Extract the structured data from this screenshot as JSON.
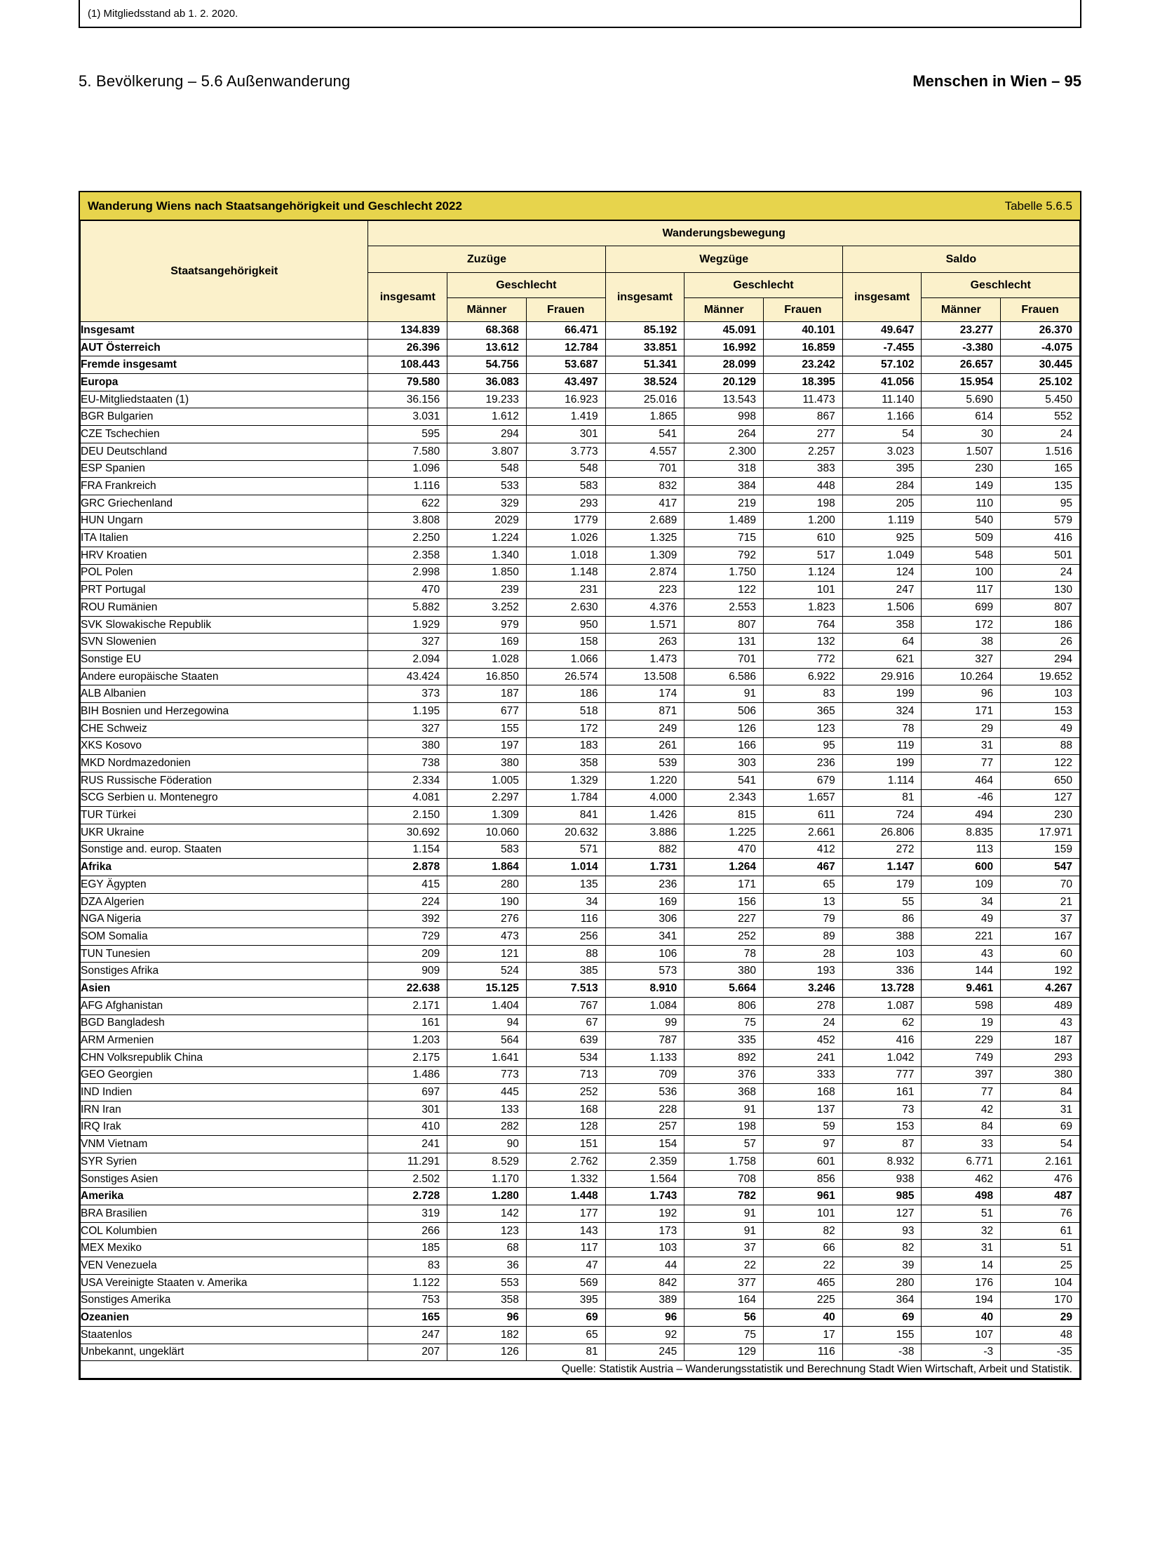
{
  "page": {
    "breadcrumb": "5. Bevölkerung – 5.6 Außenwanderung",
    "publication": "Menschen in Wien – 95"
  },
  "colors": {
    "title_bar_bg": "#E7D44C",
    "header_bg": "#FBF1CB",
    "border": "#000000",
    "page_bg": "#FFFFFF"
  },
  "table": {
    "title": "Wanderung Wiens nach Staatsangehörigkeit und Geschlecht 2022",
    "reference": "Tabelle 5.6.5",
    "header": {
      "row_dimension": "Staatsangehörigkeit",
      "col_dimension": "Wanderungsbewegung",
      "groups": [
        {
          "label": "Zuzüge"
        },
        {
          "label": "Wegzüge"
        },
        {
          "label": "Saldo"
        }
      ],
      "total_label": "insgesamt",
      "gender_label": "Geschlecht",
      "male_label": "Männer",
      "female_label": "Frauen"
    },
    "rows": [
      {
        "label": "Insgesamt",
        "indent": 0,
        "bold": true,
        "values": [
          "134.839",
          "68.368",
          "66.471",
          "85.192",
          "45.091",
          "40.101",
          "49.647",
          "23.277",
          "26.370"
        ]
      },
      {
        "label": "AUT Österreich",
        "indent": 1,
        "bold": true,
        "values": [
          "26.396",
          "13.612",
          "12.784",
          "33.851",
          "16.992",
          "16.859",
          "-7.455",
          "-3.380",
          "-4.075"
        ]
      },
      {
        "label": "Fremde insgesamt",
        "indent": 1,
        "bold": true,
        "values": [
          "108.443",
          "54.756",
          "53.687",
          "51.341",
          "28.099",
          "23.242",
          "57.102",
          "26.657",
          "30.445"
        ]
      },
      {
        "label": "Europa",
        "indent": 2,
        "bold": true,
        "values": [
          "79.580",
          "36.083",
          "43.497",
          "38.524",
          "20.129",
          "18.395",
          "41.056",
          "15.954",
          "25.102"
        ]
      },
      {
        "label": "EU-Mitgliedstaaten (1)",
        "indent": 3,
        "bold": false,
        "values": [
          "36.156",
          "19.233",
          "16.923",
          "25.016",
          "13.543",
          "11.473",
          "11.140",
          "5.690",
          "5.450"
        ]
      },
      {
        "label": "BGR Bulgarien",
        "indent": 4,
        "bold": false,
        "values": [
          "3.031",
          "1.612",
          "1.419",
          "1.865",
          "998",
          "867",
          "1.166",
          "614",
          "552"
        ]
      },
      {
        "label": "CZE Tschechien",
        "indent": 4,
        "bold": false,
        "values": [
          "595",
          "294",
          "301",
          "541",
          "264",
          "277",
          "54",
          "30",
          "24"
        ]
      },
      {
        "label": "DEU Deutschland",
        "indent": 4,
        "bold": false,
        "values": [
          "7.580",
          "3.807",
          "3.773",
          "4.557",
          "2.300",
          "2.257",
          "3.023",
          "1.507",
          "1.516"
        ]
      },
      {
        "label": "ESP Spanien",
        "indent": 4,
        "bold": false,
        "values": [
          "1.096",
          "548",
          "548",
          "701",
          "318",
          "383",
          "395",
          "230",
          "165"
        ]
      },
      {
        "label": "FRA Frankreich",
        "indent": 4,
        "bold": false,
        "values": [
          "1.116",
          "533",
          "583",
          "832",
          "384",
          "448",
          "284",
          "149",
          "135"
        ]
      },
      {
        "label": "GRC Griechenland",
        "indent": 4,
        "bold": false,
        "values": [
          "622",
          "329",
          "293",
          "417",
          "219",
          "198",
          "205",
          "110",
          "95"
        ]
      },
      {
        "label": "HUN Ungarn",
        "indent": 4,
        "bold": false,
        "values": [
          "3.808",
          "2029",
          "1779",
          "2.689",
          "1.489",
          "1.200",
          "1.119",
          "540",
          "579"
        ]
      },
      {
        "label": "ITA Italien",
        "indent": 4,
        "bold": false,
        "values": [
          "2.250",
          "1.224",
          "1.026",
          "1.325",
          "715",
          "610",
          "925",
          "509",
          "416"
        ]
      },
      {
        "label": "HRV Kroatien",
        "indent": 4,
        "bold": false,
        "values": [
          "2.358",
          "1.340",
          "1.018",
          "1.309",
          "792",
          "517",
          "1.049",
          "548",
          "501"
        ]
      },
      {
        "label": "POL Polen",
        "indent": 4,
        "bold": false,
        "values": [
          "2.998",
          "1.850",
          "1.148",
          "2.874",
          "1.750",
          "1.124",
          "124",
          "100",
          "24"
        ]
      },
      {
        "label": "PRT Portugal",
        "indent": 4,
        "bold": false,
        "values": [
          "470",
          "239",
          "231",
          "223",
          "122",
          "101",
          "247",
          "117",
          "130"
        ]
      },
      {
        "label": "ROU Rumänien",
        "indent": 4,
        "bold": false,
        "values": [
          "5.882",
          "3.252",
          "2.630",
          "4.376",
          "2.553",
          "1.823",
          "1.506",
          "699",
          "807"
        ]
      },
      {
        "label": "SVK Slowakische Republik",
        "indent": 4,
        "bold": false,
        "values": [
          "1.929",
          "979",
          "950",
          "1.571",
          "807",
          "764",
          "358",
          "172",
          "186"
        ]
      },
      {
        "label": "SVN Slowenien",
        "indent": 4,
        "bold": false,
        "values": [
          "327",
          "169",
          "158",
          "263",
          "131",
          "132",
          "64",
          "38",
          "26"
        ]
      },
      {
        "label": "Sonstige EU",
        "indent": 4,
        "bold": false,
        "values": [
          "2.094",
          "1.028",
          "1.066",
          "1.473",
          "701",
          "772",
          "621",
          "327",
          "294"
        ]
      },
      {
        "label": "Andere europäische Staaten",
        "indent": 3,
        "bold": false,
        "values": [
          "43.424",
          "16.850",
          "26.574",
          "13.508",
          "6.586",
          "6.922",
          "29.916",
          "10.264",
          "19.652"
        ]
      },
      {
        "label": "ALB Albanien",
        "indent": 4,
        "bold": false,
        "values": [
          "373",
          "187",
          "186",
          "174",
          "91",
          "83",
          "199",
          "96",
          "103"
        ]
      },
      {
        "label": "BIH Bosnien und Herzegowina",
        "indent": 4,
        "bold": false,
        "values": [
          "1.195",
          "677",
          "518",
          "871",
          "506",
          "365",
          "324",
          "171",
          "153"
        ]
      },
      {
        "label": "CHE Schweiz",
        "indent": 4,
        "bold": false,
        "values": [
          "327",
          "155",
          "172",
          "249",
          "126",
          "123",
          "78",
          "29",
          "49"
        ]
      },
      {
        "label": "XKS Kosovo",
        "indent": 4,
        "bold": false,
        "values": [
          "380",
          "197",
          "183",
          "261",
          "166",
          "95",
          "119",
          "31",
          "88"
        ]
      },
      {
        "label": "MKD Nordmazedonien",
        "indent": 4,
        "bold": false,
        "values": [
          "738",
          "380",
          "358",
          "539",
          "303",
          "236",
          "199",
          "77",
          "122"
        ]
      },
      {
        "label": "RUS Russische Föderation",
        "indent": 4,
        "bold": false,
        "values": [
          "2.334",
          "1.005",
          "1.329",
          "1.220",
          "541",
          "679",
          "1.114",
          "464",
          "650"
        ]
      },
      {
        "label": "SCG Serbien u. Montenegro",
        "indent": 4,
        "bold": false,
        "values": [
          "4.081",
          "2.297",
          "1.784",
          "4.000",
          "2.343",
          "1.657",
          "81",
          "-46",
          "127"
        ]
      },
      {
        "label": "TUR Türkei",
        "indent": 4,
        "bold": false,
        "values": [
          "2.150",
          "1.309",
          "841",
          "1.426",
          "815",
          "611",
          "724",
          "494",
          "230"
        ]
      },
      {
        "label": "UKR Ukraine",
        "indent": 4,
        "bold": false,
        "values": [
          "30.692",
          "10.060",
          "20.632",
          "3.886",
          "1.225",
          "2.661",
          "26.806",
          "8.835",
          "17.971"
        ]
      },
      {
        "label": "Sonstige and. europ. Staaten",
        "indent": 4,
        "bold": false,
        "values": [
          "1.154",
          "583",
          "571",
          "882",
          "470",
          "412",
          "272",
          "113",
          "159"
        ]
      },
      {
        "label": "Afrika",
        "indent": 2,
        "bold": true,
        "values": [
          "2.878",
          "1.864",
          "1.014",
          "1.731",
          "1.264",
          "467",
          "1.147",
          "600",
          "547"
        ]
      },
      {
        "label": "EGY Ägypten",
        "indent": 3,
        "bold": false,
        "values": [
          "415",
          "280",
          "135",
          "236",
          "171",
          "65",
          "179",
          "109",
          "70"
        ]
      },
      {
        "label": "DZA Algerien",
        "indent": 3,
        "bold": false,
        "values": [
          "224",
          "190",
          "34",
          "169",
          "156",
          "13",
          "55",
          "34",
          "21"
        ]
      },
      {
        "label": "NGA Nigeria",
        "indent": 3,
        "bold": false,
        "values": [
          "392",
          "276",
          "116",
          "306",
          "227",
          "79",
          "86",
          "49",
          "37"
        ]
      },
      {
        "label": "SOM Somalia",
        "indent": 3,
        "bold": false,
        "values": [
          "729",
          "473",
          "256",
          "341",
          "252",
          "89",
          "388",
          "221",
          "167"
        ]
      },
      {
        "label": "TUN Tunesien",
        "indent": 3,
        "bold": false,
        "values": [
          "209",
          "121",
          "88",
          "106",
          "78",
          "28",
          "103",
          "43",
          "60"
        ]
      },
      {
        "label": "Sonstiges Afrika",
        "indent": 3,
        "bold": false,
        "values": [
          "909",
          "524",
          "385",
          "573",
          "380",
          "193",
          "336",
          "144",
          "192"
        ]
      },
      {
        "label": "Asien",
        "indent": 2,
        "bold": true,
        "values": [
          "22.638",
          "15.125",
          "7.513",
          "8.910",
          "5.664",
          "3.246",
          "13.728",
          "9.461",
          "4.267"
        ]
      },
      {
        "label": "AFG Afghanistan",
        "indent": 3,
        "bold": false,
        "values": [
          "2.171",
          "1.404",
          "767",
          "1.084",
          "806",
          "278",
          "1.087",
          "598",
          "489"
        ]
      },
      {
        "label": "BGD Bangladesh",
        "indent": 3,
        "bold": false,
        "values": [
          "161",
          "94",
          "67",
          "99",
          "75",
          "24",
          "62",
          "19",
          "43"
        ]
      },
      {
        "label": "ARM Armenien",
        "indent": 3,
        "bold": false,
        "values": [
          "1.203",
          "564",
          "639",
          "787",
          "335",
          "452",
          "416",
          "229",
          "187"
        ]
      },
      {
        "label": "CHN Volksrepublik China",
        "indent": 3,
        "bold": false,
        "values": [
          "2.175",
          "1.641",
          "534",
          "1.133",
          "892",
          "241",
          "1.042",
          "749",
          "293"
        ]
      },
      {
        "label": "GEO Georgien",
        "indent": 3,
        "bold": false,
        "values": [
          "1.486",
          "773",
          "713",
          "709",
          "376",
          "333",
          "777",
          "397",
          "380"
        ]
      },
      {
        "label": "IND Indien",
        "indent": 3,
        "bold": false,
        "values": [
          "697",
          "445",
          "252",
          "536",
          "368",
          "168",
          "161",
          "77",
          "84"
        ]
      },
      {
        "label": "IRN Iran",
        "indent": 3,
        "bold": false,
        "values": [
          "301",
          "133",
          "168",
          "228",
          "91",
          "137",
          "73",
          "42",
          "31"
        ]
      },
      {
        "label": "IRQ Irak",
        "indent": 3,
        "bold": false,
        "values": [
          "410",
          "282",
          "128",
          "257",
          "198",
          "59",
          "153",
          "84",
          "69"
        ]
      },
      {
        "label": "VNM Vietnam",
        "indent": 3,
        "bold": false,
        "values": [
          "241",
          "90",
          "151",
          "154",
          "57",
          "97",
          "87",
          "33",
          "54"
        ]
      },
      {
        "label": "SYR Syrien",
        "indent": 3,
        "bold": false,
        "values": [
          "11.291",
          "8.529",
          "2.762",
          "2.359",
          "1.758",
          "601",
          "8.932",
          "6.771",
          "2.161"
        ]
      },
      {
        "label": "Sonstiges Asien",
        "indent": 3,
        "bold": false,
        "values": [
          "2.502",
          "1.170",
          "1.332",
          "1.564",
          "708",
          "856",
          "938",
          "462",
          "476"
        ]
      },
      {
        "label": "Amerika",
        "indent": 2,
        "bold": true,
        "values": [
          "2.728",
          "1.280",
          "1.448",
          "1.743",
          "782",
          "961",
          "985",
          "498",
          "487"
        ]
      },
      {
        "label": "BRA Brasilien",
        "indent": 3,
        "bold": false,
        "values": [
          "319",
          "142",
          "177",
          "192",
          "91",
          "101",
          "127",
          "51",
          "76"
        ]
      },
      {
        "label": "COL Kolumbien",
        "indent": 3,
        "bold": false,
        "values": [
          "266",
          "123",
          "143",
          "173",
          "91",
          "82",
          "93",
          "32",
          "61"
        ]
      },
      {
        "label": "MEX Mexiko",
        "indent": 3,
        "bold": false,
        "values": [
          "185",
          "68",
          "117",
          "103",
          "37",
          "66",
          "82",
          "31",
          "51"
        ]
      },
      {
        "label": "VEN Venezuela",
        "indent": 3,
        "bold": false,
        "values": [
          "83",
          "36",
          "47",
          "44",
          "22",
          "22",
          "39",
          "14",
          "25"
        ]
      },
      {
        "label": "USA Vereinigte Staaten v. Amerika",
        "indent": 3,
        "bold": false,
        "values": [
          "1.122",
          "553",
          "569",
          "842",
          "377",
          "465",
          "280",
          "176",
          "104"
        ]
      },
      {
        "label": "Sonstiges Amerika",
        "indent": 3,
        "bold": false,
        "values": [
          "753",
          "358",
          "395",
          "389",
          "164",
          "225",
          "364",
          "194",
          "170"
        ]
      },
      {
        "label": "Ozeanien",
        "indent": 2,
        "bold": true,
        "values": [
          "165",
          "96",
          "69",
          "96",
          "56",
          "40",
          "69",
          "40",
          "29"
        ]
      },
      {
        "label": "Staatenlos",
        "indent": 0,
        "bold": false,
        "values": [
          "247",
          "182",
          "65",
          "92",
          "75",
          "17",
          "155",
          "107",
          "48"
        ]
      },
      {
        "label": "Unbekannt, ungeklärt",
        "indent": 0,
        "bold": false,
        "values": [
          "207",
          "126",
          "81",
          "245",
          "129",
          "116",
          "-38",
          "-3",
          "-35"
        ]
      }
    ],
    "source": "Quelle: Statistik Austria – Wanderungsstatistik und Berechnung Stadt Wien Wirtschaft, Arbeit und Statistik.",
    "footnote": "(1) Mitgliedsstand ab 1. 2. 2020."
  }
}
